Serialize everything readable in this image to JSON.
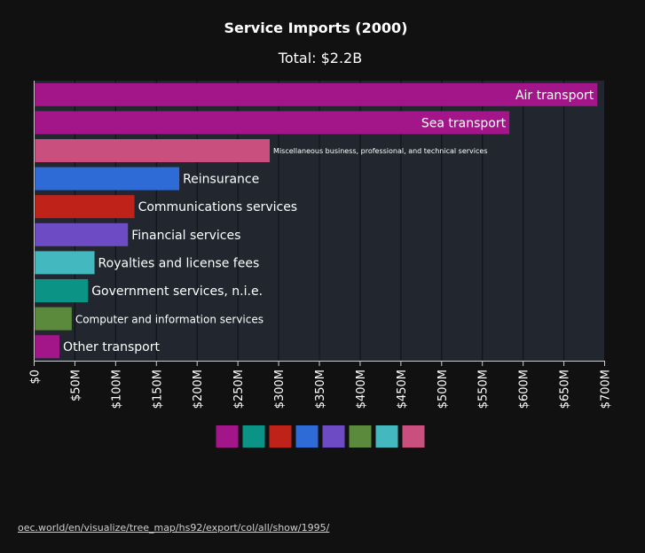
{
  "chart_data": {
    "type": "bar",
    "orientation": "horizontal",
    "title": "Service Imports (2000)",
    "subtitle": "Total: $2.2B",
    "xlabel": "",
    "ylabel": "",
    "xlim": [
      0,
      700
    ],
    "value_unit": "millions USD",
    "x_ticks": [
      0,
      50,
      100,
      150,
      200,
      250,
      300,
      350,
      400,
      450,
      500,
      550,
      600,
      650,
      700
    ],
    "x_tick_labels": [
      "$0",
      "$50M",
      "$100M",
      "$150M",
      "$200M",
      "$250M",
      "$300M",
      "$350M",
      "$400M",
      "$450M",
      "$500M",
      "$550M",
      "$600M",
      "$650M",
      "$700M"
    ],
    "grid": true,
    "categories": [
      "Air transport",
      "Sea transport",
      "Miscellaneous business, professional, and technical services",
      "Reinsurance",
      "Communications services",
      "Financial services",
      "Royalties and license fees",
      "Government services, n.i.e.",
      "Computer and information services",
      "Other transport"
    ],
    "values": [
      690,
      582,
      288,
      177,
      122,
      114,
      73,
      65,
      45,
      30
    ],
    "colors": [
      "#a3168a",
      "#a3168a",
      "#c9507e",
      "#2e6bd6",
      "#be2219",
      "#6d4bc4",
      "#44b8bf",
      "#0b9485",
      "#5b8a3c",
      "#a3168a"
    ],
    "label_positions": [
      "inside",
      "inside",
      "outside",
      "outside",
      "outside",
      "outside",
      "outside",
      "outside",
      "outside",
      "outside"
    ],
    "legend": {
      "placement": "bottom",
      "swatches": [
        "#a3168a",
        "#0b9485",
        "#be2219",
        "#2e6bd6",
        "#6d4bc4",
        "#5b8a3c",
        "#44b8bf",
        "#c9507e"
      ]
    }
  },
  "source": "oec.world/en/visualize/tree_map/hs92/export/col/all/show/1995/"
}
